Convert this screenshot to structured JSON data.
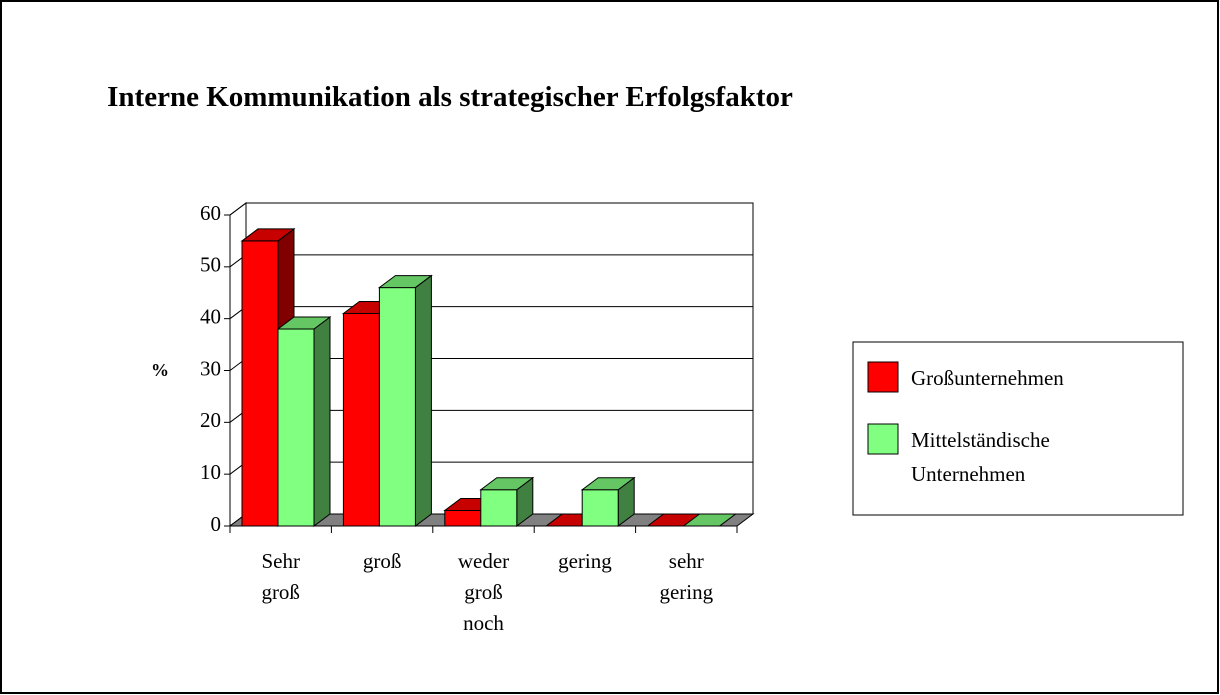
{
  "chart_data": {
    "type": "bar3d",
    "title": "Interne Kommunikation als strategischer Erfolgsfaktor",
    "y_label": "%",
    "categories": [
      "Sehr groß",
      "groß",
      "weder groß noch",
      "gering",
      "sehr gering"
    ],
    "series": [
      {
        "name": "Großunternehmen",
        "color": "#ff0000",
        "values": [
          55,
          41,
          3,
          0,
          0
        ]
      },
      {
        "name": "Mittelständische Unternehmen",
        "color": "#80ff80",
        "values": [
          38,
          46,
          7,
          7,
          0
        ]
      }
    ],
    "ylim": [
      0,
      60
    ],
    "yticks": [
      0,
      10,
      20,
      30,
      40,
      50,
      60
    ],
    "grid": true,
    "legend": "right"
  }
}
